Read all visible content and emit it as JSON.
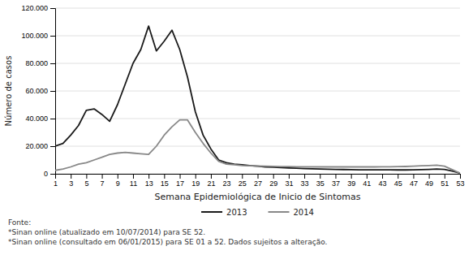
{
  "chart_data": {
    "type": "line",
    "x": [
      1,
      2,
      3,
      4,
      5,
      6,
      7,
      8,
      9,
      10,
      11,
      12,
      13,
      14,
      15,
      16,
      17,
      18,
      19,
      20,
      21,
      22,
      23,
      24,
      25,
      26,
      27,
      28,
      29,
      30,
      31,
      32,
      33,
      34,
      35,
      36,
      37,
      38,
      39,
      40,
      41,
      42,
      43,
      44,
      45,
      46,
      47,
      48,
      49,
      50,
      51,
      52,
      53
    ],
    "series": [
      {
        "name": "2013",
        "color": "#1a1a1a",
        "values": [
          20000,
          22000,
          28000,
          35000,
          46000,
          47000,
          43000,
          38000,
          50000,
          65000,
          80000,
          90000,
          107000,
          89000,
          96000,
          104000,
          90000,
          70000,
          45000,
          28000,
          18000,
          10000,
          8000,
          7000,
          6500,
          6000,
          5500,
          5000,
          4800,
          4500,
          4200,
          4000,
          3800,
          3600,
          3400,
          3300,
          3200,
          3100,
          3000,
          2900,
          2900,
          2900,
          2900,
          2900,
          2800,
          2800,
          2900,
          3000,
          3200,
          3500,
          3200,
          2000,
          500
        ]
      },
      {
        "name": "2014",
        "color": "#888888",
        "values": [
          2500,
          3500,
          5000,
          7000,
          8000,
          10000,
          12000,
          14000,
          15000,
          15500,
          15000,
          14500,
          14000,
          20000,
          28000,
          34000,
          39000,
          39000,
          30000,
          22000,
          15000,
          9000,
          7000,
          6500,
          6000,
          5800,
          5600,
          5500,
          5400,
          5200,
          5200,
          5100,
          5000,
          5000,
          5000,
          5000,
          5000,
          5000,
          5000,
          5000,
          5000,
          5000,
          5100,
          5100,
          5200,
          5300,
          5500,
          5800,
          6000,
          6200,
          5500,
          3000,
          500
        ]
      }
    ],
    "x_label": "Semana Epidemiológica de Inicio de Sintomas",
    "y_label": "Número de casos",
    "xlim": [
      1,
      53
    ],
    "xticks": [
      1,
      3,
      5,
      7,
      9,
      11,
      13,
      15,
      17,
      19,
      21,
      23,
      25,
      27,
      29,
      31,
      33,
      35,
      37,
      39,
      41,
      43,
      45,
      47,
      49,
      51,
      53
    ],
    "ylim": [
      0,
      120000
    ],
    "yticks": [
      0,
      {
        "value": 20000,
        "label": "20.000"
      },
      {
        "value": 40000,
        "label": "40.000"
      },
      {
        "value": 60000,
        "label": "60.000"
      },
      {
        "value": 80000,
        "label": "80.000"
      },
      {
        "value": 100000,
        "label": "100.000"
      },
      {
        "value": 120000,
        "label": "120.000"
      }
    ],
    "grid": true,
    "legend": "bottom",
    "annotations": [
      "Fonte:",
      "*Sinan online (atualizado em 10/07/2014) para SE 52.",
      "*Sinan online (consultado em 06/01/2015) para SE 01 a 52. Dados sujeitos a alteração."
    ]
  }
}
